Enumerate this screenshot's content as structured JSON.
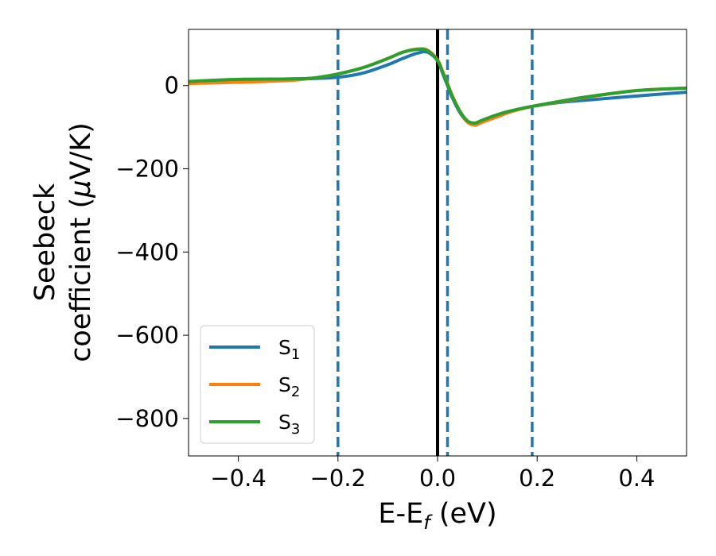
{
  "chart_data": {
    "type": "line",
    "title": "",
    "xlabel": {
      "main": "E-E",
      "sub": "f",
      "unit": " (eV)"
    },
    "ylabel": {
      "line1": "Seebeck",
      "line2": "coefficient  (",
      "mu": "μ",
      "unit": "V/K)"
    },
    "xlim": [
      -0.5,
      0.5
    ],
    "ylim": [
      -890,
      135
    ],
    "x_ticks": [
      -0.4,
      -0.2,
      0.0,
      0.2,
      0.4
    ],
    "x_tick_labels": [
      "−0.4",
      "−0.2",
      "0.0",
      "0.2",
      "0.4"
    ],
    "y_ticks": [
      0,
      -200,
      -400,
      -600,
      -800
    ],
    "y_tick_labels": [
      "0",
      "−200",
      "−400",
      "−600",
      "−800"
    ],
    "grid": false,
    "legend_placement": "lower-left",
    "vertical_lines": [
      {
        "x": -0.2,
        "style": "dashed",
        "color": "#1f77b4"
      },
      {
        "x": 0.02,
        "style": "dashed",
        "color": "#1f77b4"
      },
      {
        "x": 0.19,
        "style": "dashed",
        "color": "#1f77b4"
      },
      {
        "x": 0.0,
        "style": "solid",
        "color": "#000000"
      }
    ],
    "series": [
      {
        "name": "S",
        "sub": "1",
        "color": "#1f77b4",
        "x": [
          -0.5,
          -0.4,
          -0.3,
          -0.25,
          -0.2,
          -0.15,
          -0.1,
          -0.07,
          -0.04,
          -0.02,
          0.0,
          0.01,
          0.02,
          0.03,
          0.045,
          0.06,
          0.075,
          0.09,
          0.12,
          0.15,
          0.19,
          0.25,
          0.3,
          0.4,
          0.5
        ],
        "y": [
          8,
          13,
          16,
          17,
          20,
          30,
          50,
          65,
          78,
          80,
          60,
          30,
          0,
          -30,
          -65,
          -87,
          -92,
          -85,
          -70,
          -60,
          -50,
          -40,
          -35,
          -25,
          -16
        ]
      },
      {
        "name": "S",
        "sub": "2",
        "color": "#ff7f0e",
        "x": [
          -0.5,
          -0.4,
          -0.3,
          -0.25,
          -0.2,
          -0.15,
          -0.1,
          -0.07,
          -0.04,
          -0.02,
          0.0,
          0.01,
          0.02,
          0.03,
          0.045,
          0.06,
          0.075,
          0.09,
          0.12,
          0.15,
          0.19,
          0.25,
          0.3,
          0.4,
          0.5
        ],
        "y": [
          5,
          8,
          12,
          18,
          28,
          43,
          65,
          80,
          88,
          85,
          62,
          35,
          5,
          -25,
          -62,
          -88,
          -95,
          -88,
          -75,
          -62,
          -50,
          -38,
          -28,
          -12,
          -6
        ]
      },
      {
        "name": "S",
        "sub": "3",
        "color": "#2ca02c",
        "x": [
          -0.5,
          -0.4,
          -0.3,
          -0.25,
          -0.2,
          -0.15,
          -0.1,
          -0.07,
          -0.04,
          -0.02,
          0.0,
          0.01,
          0.02,
          0.03,
          0.045,
          0.06,
          0.075,
          0.09,
          0.12,
          0.15,
          0.19,
          0.25,
          0.3,
          0.4,
          0.5
        ],
        "y": [
          10,
          15,
          16,
          18,
          28,
          43,
          65,
          80,
          87,
          84,
          60,
          33,
          3,
          -27,
          -62,
          -85,
          -90,
          -83,
          -70,
          -60,
          -50,
          -37,
          -27,
          -12,
          -6
        ]
      }
    ]
  }
}
